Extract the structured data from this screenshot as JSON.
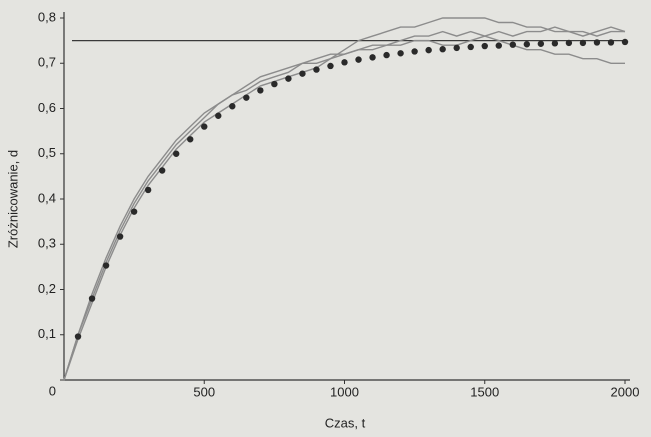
{
  "chart_data": {
    "type": "line",
    "xlabel": "Czas, t",
    "ylabel": "Zróżnicowanie, d",
    "x": [
      0,
      50,
      100,
      150,
      200,
      250,
      300,
      350,
      400,
      450,
      500,
      550,
      600,
      650,
      700,
      750,
      800,
      850,
      900,
      950,
      1000,
      1050,
      1100,
      1150,
      1200,
      1250,
      1300,
      1350,
      1400,
      1450,
      1500,
      1550,
      1600,
      1650,
      1700,
      1750,
      1800,
      1850,
      1900,
      1950,
      2000
    ],
    "series": [
      {
        "color": "#8c8c8c",
        "values": [
          0,
          0.09,
          0.17,
          0.25,
          0.32,
          0.38,
          0.43,
          0.47,
          0.51,
          0.54,
          0.57,
          0.59,
          0.61,
          0.63,
          0.65,
          0.66,
          0.67,
          0.68,
          0.69,
          0.71,
          0.73,
          0.75,
          0.76,
          0.77,
          0.78,
          0.78,
          0.79,
          0.8,
          0.8,
          0.8,
          0.8,
          0.79,
          0.79,
          0.78,
          0.78,
          0.77,
          0.77,
          0.77,
          0.76,
          0.77,
          0.77
        ]
      },
      {
        "color": "#8c8c8c",
        "values": [
          0,
          0.1,
          0.19,
          0.27,
          0.34,
          0.4,
          0.45,
          0.49,
          0.53,
          0.56,
          0.59,
          0.61,
          0.63,
          0.65,
          0.67,
          0.68,
          0.69,
          0.7,
          0.71,
          0.72,
          0.72,
          0.73,
          0.73,
          0.74,
          0.74,
          0.75,
          0.75,
          0.74,
          0.74,
          0.75,
          0.76,
          0.75,
          0.74,
          0.73,
          0.73,
          0.72,
          0.72,
          0.71,
          0.71,
          0.7,
          0.7
        ]
      },
      {
        "color": "#8c8c8c",
        "values": [
          0,
          0.1,
          0.18,
          0.26,
          0.33,
          0.39,
          0.44,
          0.48,
          0.52,
          0.55,
          0.58,
          0.61,
          0.63,
          0.64,
          0.66,
          0.67,
          0.68,
          0.7,
          0.7,
          0.71,
          0.72,
          0.73,
          0.74,
          0.74,
          0.75,
          0.76,
          0.76,
          0.77,
          0.76,
          0.77,
          0.76,
          0.77,
          0.76,
          0.77,
          0.77,
          0.78,
          0.77,
          0.76,
          0.77,
          0.78,
          0.77
        ]
      },
      {
        "color": "#2a2a2a",
        "markers": true,
        "values": [
          null,
          0.096,
          0.18,
          0.253,
          0.317,
          0.372,
          0.42,
          0.463,
          0.5,
          0.532,
          0.56,
          0.584,
          0.605,
          0.624,
          0.64,
          0.654,
          0.666,
          0.677,
          0.686,
          0.694,
          0.702,
          0.708,
          0.713,
          0.718,
          0.722,
          0.726,
          0.729,
          0.731,
          0.734,
          0.736,
          0.738,
          0.739,
          0.741,
          0.742,
          0.743,
          0.744,
          0.745,
          0.745,
          0.746,
          0.746,
          0.747
        ]
      }
    ],
    "reference_line": 0.75,
    "reference_color": "#3a3a3a",
    "xlim": [
      0,
      2000
    ],
    "xticks": [
      500,
      1000,
      1500,
      2000
    ],
    "ylim": [
      0,
      0.8
    ],
    "yticks": [
      0,
      {
        "value": 0.1,
        "label": "0,1"
      },
      {
        "value": 0.2,
        "label": "0,2"
      },
      {
        "value": 0.3,
        "label": "0,3"
      },
      {
        "value": 0.4,
        "label": "0,4"
      },
      {
        "value": 0.5,
        "label": "0,5"
      },
      {
        "value": 0.6,
        "label": "0,6"
      },
      {
        "value": 0.7,
        "label": "0,7"
      },
      {
        "value": 0.8,
        "label": "0,8"
      }
    ]
  }
}
